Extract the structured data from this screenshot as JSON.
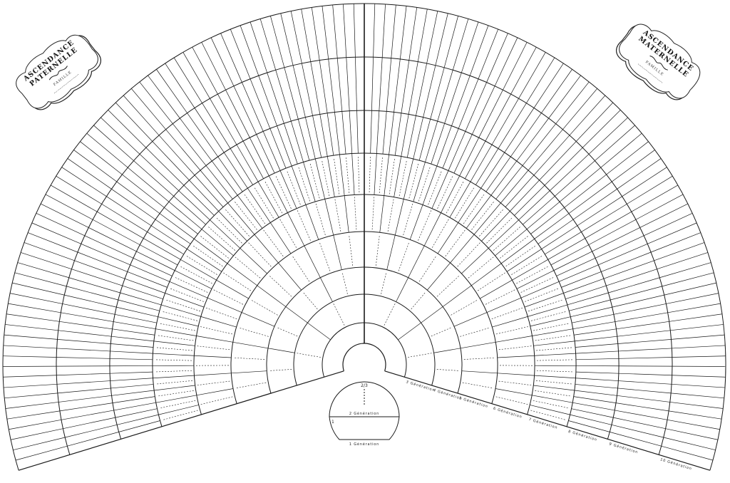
{
  "cartouche_left": {
    "line1": "ASCENDANCE",
    "line2": "PATERNELLE",
    "famille": "FAMILLE"
  },
  "cartouche_right": {
    "line1": "ASCENDANCE",
    "line2": "MATERNELLE",
    "famille": "FAMILLE"
  },
  "dome": {
    "top_number": "2/3",
    "gen2_label": "2 Génération",
    "first_cell": "1",
    "gen1_label": "1 Génération"
  },
  "generations": [
    {
      "label": "",
      "cells": 2
    },
    {
      "label": "3 Génération",
      "cells": 4
    },
    {
      "label": "4 Génération",
      "cells": 8
    },
    {
      "label": "5 Génération",
      "cells": 16
    },
    {
      "label": "6 Génération",
      "cells": 32
    },
    {
      "label": "7 Génération",
      "cells": 64
    },
    {
      "label": "8 Génération",
      "cells": 128
    },
    {
      "label": "9 Génération",
      "cells": 128
    },
    {
      "label": "10 Génération",
      "cells": 128
    }
  ],
  "colors": {
    "ink": "#1a1a1a",
    "paper": "#ffffff"
  }
}
